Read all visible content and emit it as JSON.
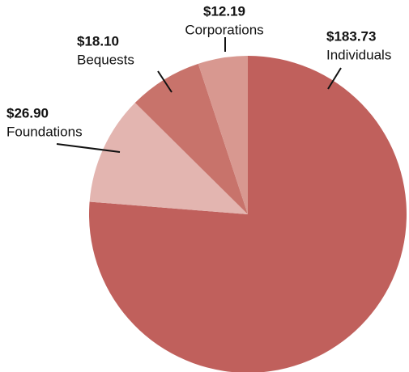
{
  "chart_data": {
    "type": "pie",
    "categories": [
      "Individuals",
      "Foundations",
      "Bequests",
      "Corporations"
    ],
    "values": [
      183.73,
      26.9,
      18.1,
      12.19
    ],
    "value_labels": [
      "$183.73",
      "$26.90",
      "$18.10",
      "$12.19"
    ],
    "colors": [
      "#c0605c",
      "#e3b5b0",
      "#c8736b",
      "#d89890"
    ]
  }
}
